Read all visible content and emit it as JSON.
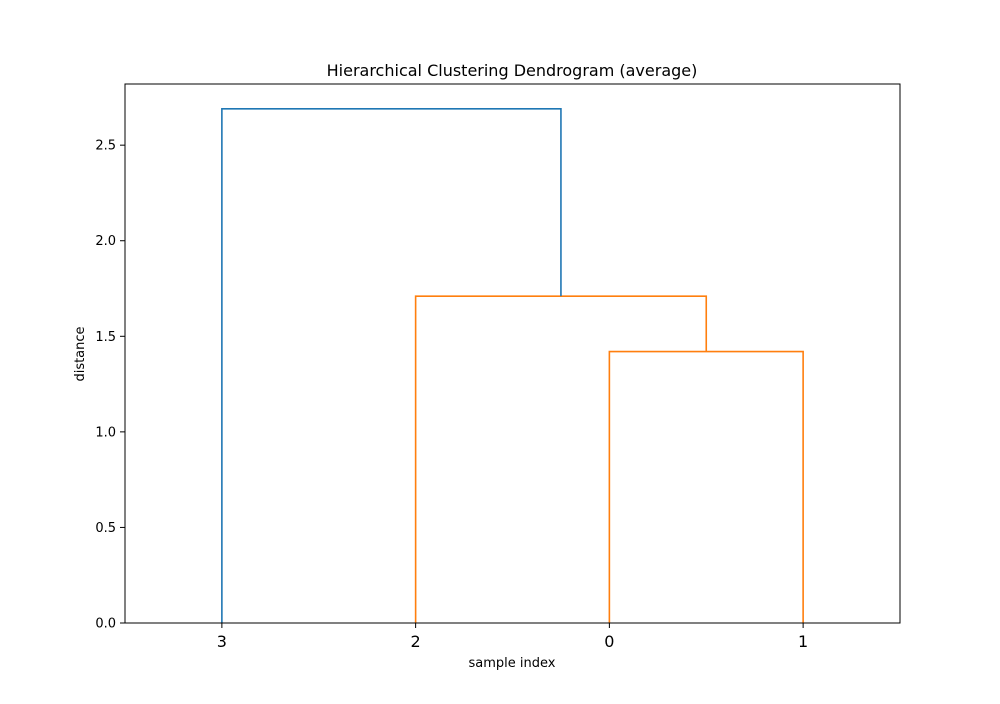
{
  "chart_data": {
    "type": "dendrogram",
    "title": "Hierarchical Clustering Dendrogram (average)",
    "xlabel": "sample index",
    "ylabel": "distance",
    "leaf_order": [
      "3",
      "2",
      "0",
      "1"
    ],
    "ylim": [
      0,
      2.82
    ],
    "yticks": [
      0.0,
      0.5,
      1.0,
      1.5,
      2.0,
      2.5
    ],
    "ytick_labels": [
      "0.0",
      "0.5",
      "1.0",
      "1.5",
      "2.0",
      "2.5"
    ],
    "grid": false,
    "legend": "none",
    "merges": [
      {
        "left": "0",
        "right": "1",
        "distance": 1.42,
        "color": "#ff7f0e"
      },
      {
        "left": "2",
        "right": "(0,1)",
        "distance": 1.71,
        "color": "#ff7f0e"
      },
      {
        "left": "3",
        "right": "(2,(0,1))",
        "distance": 2.69,
        "color": "#1f77b4"
      }
    ],
    "colors": {
      "cluster": "#ff7f0e",
      "above_threshold": "#1f77b4",
      "axes": "#000000"
    }
  }
}
